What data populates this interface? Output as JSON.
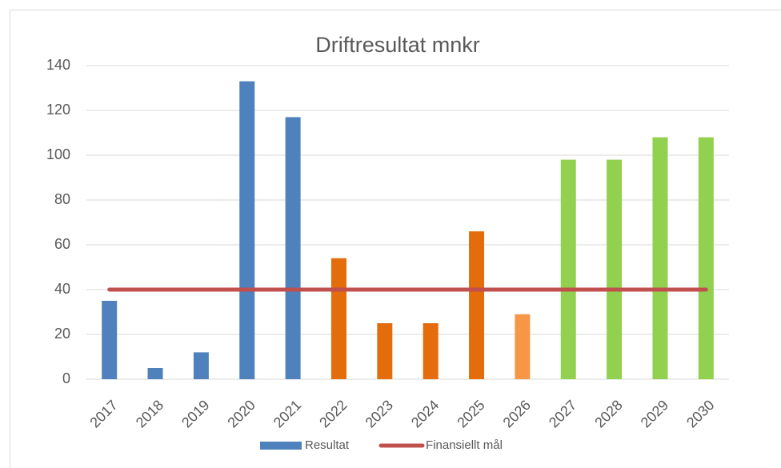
{
  "chart_data": {
    "type": "bar-line",
    "title": "Driftresultat mnkr",
    "categories": [
      "2017",
      "2018",
      "2019",
      "2020",
      "2021",
      "2022",
      "2023",
      "2024",
      "2025",
      "2026",
      "2027",
      "2028",
      "2029",
      "2030"
    ],
    "series": [
      {
        "name": "Resultat",
        "type": "bar",
        "color": "#4f81bd",
        "colors": [
          "#4f81bd",
          "#4f81bd",
          "#4f81bd",
          "#4f81bd",
          "#4f81bd",
          "#e46c0a",
          "#e46c0a",
          "#e46c0a",
          "#e46c0a",
          "#f79646",
          "#92d050",
          "#92d050",
          "#92d050",
          "#92d050"
        ],
        "values": [
          35,
          5,
          12,
          133,
          117,
          54,
          25,
          25,
          66,
          29,
          98,
          98,
          108,
          108
        ]
      },
      {
        "name": "Finansiellt mål",
        "type": "line",
        "color": "#c0504d",
        "values": [
          40,
          40,
          40,
          40,
          40,
          40,
          40,
          40,
          40,
          40,
          40,
          40,
          40,
          40
        ]
      }
    ],
    "ylim": [
      0,
      140
    ],
    "yticks": [
      0,
      20,
      40,
      60,
      80,
      100,
      120,
      140
    ],
    "grid": true,
    "legend": "bottom"
  }
}
